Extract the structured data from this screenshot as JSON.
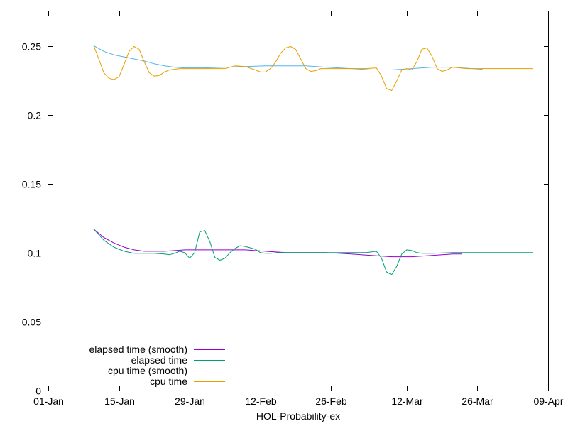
{
  "chart_data": {
    "type": "line",
    "title": "",
    "xlabel": "HOL-Probability-ex",
    "ylabel": "",
    "x_axis_type": "date",
    "xlim": [
      "01-Jan",
      "09-Apr"
    ],
    "ylim": [
      0,
      0.275
    ],
    "x_tick_labels": [
      "01-Jan",
      "15-Jan",
      "29-Jan",
      "12-Feb",
      "26-Feb",
      "12-Mar",
      "26-Mar",
      "09-Apr"
    ],
    "x_tick_dates": [
      "01-01",
      "01-15",
      "01-29",
      "02-12",
      "02-26",
      "03-12",
      "03-26",
      "04-09"
    ],
    "y_ticks": [
      0,
      0.05,
      0.1,
      0.15,
      0.2,
      0.25
    ],
    "y_tick_labels": [
      "0",
      "0.05",
      "0.1",
      "0.15",
      "0.2",
      "0.25"
    ],
    "grid": false,
    "legend_position": "bottom-left",
    "series": [
      {
        "name": "elapsed time (smooth)",
        "color": "#9400d3",
        "points": [
          [
            "01-10",
            0.117
          ],
          [
            "01-12",
            0.111
          ],
          [
            "01-14",
            0.107
          ],
          [
            "01-16",
            0.104
          ],
          [
            "01-18",
            0.102
          ],
          [
            "01-20",
            0.101
          ],
          [
            "01-24",
            0.101
          ],
          [
            "01-28",
            0.102
          ],
          [
            "02-01",
            0.102
          ],
          [
            "02-05",
            0.102
          ],
          [
            "02-09",
            0.102
          ],
          [
            "02-13",
            0.101
          ],
          [
            "02-17",
            0.1
          ],
          [
            "02-21",
            0.1
          ],
          [
            "02-25",
            0.1
          ],
          [
            "03-01",
            0.099
          ],
          [
            "03-05",
            0.098
          ],
          [
            "03-09",
            0.097
          ],
          [
            "03-13",
            0.097
          ],
          [
            "03-17",
            0.098
          ],
          [
            "03-21",
            0.099
          ],
          [
            "03-23",
            0.099
          ]
        ]
      },
      {
        "name": "elapsed time",
        "color": "#009e73",
        "points": [
          [
            "01-10",
            0.117
          ],
          [
            "01-12",
            0.109
          ],
          [
            "01-14",
            0.104
          ],
          [
            "01-16",
            0.101
          ],
          [
            "01-18",
            0.0995
          ],
          [
            "01-20",
            0.0995
          ],
          [
            "01-22",
            0.0995
          ],
          [
            "01-24",
            0.099
          ],
          [
            "01-25",
            0.0985
          ],
          [
            "01-26",
            0.0995
          ],
          [
            "01-27",
            0.101
          ],
          [
            "01-28",
            0.1
          ],
          [
            "01-29",
            0.096
          ],
          [
            "01-30",
            0.1
          ],
          [
            "01-31",
            0.115
          ],
          [
            "02-01",
            0.116
          ],
          [
            "02-02",
            0.108
          ],
          [
            "02-03",
            0.0965
          ],
          [
            "02-04",
            0.0945
          ],
          [
            "02-05",
            0.096
          ],
          [
            "02-06",
            0.1
          ],
          [
            "02-07",
            0.103
          ],
          [
            "02-08",
            0.105
          ],
          [
            "02-09",
            0.1045
          ],
          [
            "02-10",
            0.1035
          ],
          [
            "02-11",
            0.1025
          ],
          [
            "02-12",
            0.1
          ],
          [
            "02-13",
            0.0995
          ],
          [
            "02-14",
            0.0995
          ],
          [
            "02-16",
            0.1
          ],
          [
            "02-20",
            0.1
          ],
          [
            "02-24",
            0.1
          ],
          [
            "02-28",
            0.1
          ],
          [
            "03-04",
            0.1
          ],
          [
            "03-06",
            0.101
          ],
          [
            "03-07",
            0.096
          ],
          [
            "03-08",
            0.086
          ],
          [
            "03-09",
            0.084
          ],
          [
            "03-10",
            0.09
          ],
          [
            "03-11",
            0.099
          ],
          [
            "03-12",
            0.102
          ],
          [
            "03-13",
            0.1015
          ],
          [
            "03-14",
            0.1
          ],
          [
            "03-15",
            0.0995
          ],
          [
            "03-17",
            0.0995
          ],
          [
            "03-21",
            0.1
          ],
          [
            "03-25",
            0.1
          ],
          [
            "03-29",
            0.1
          ],
          [
            "04-02",
            0.1
          ],
          [
            "04-06",
            0.1
          ]
        ]
      },
      {
        "name": "cpu time (smooth)",
        "color": "#56b4e9",
        "points": [
          [
            "01-10",
            0.25
          ],
          [
            "01-12",
            0.246
          ],
          [
            "01-14",
            0.2435
          ],
          [
            "01-16",
            0.242
          ],
          [
            "01-18",
            0.2405
          ],
          [
            "01-20",
            0.239
          ],
          [
            "01-22",
            0.237
          ],
          [
            "01-24",
            0.2355
          ],
          [
            "01-26",
            0.2345
          ],
          [
            "01-28",
            0.234
          ],
          [
            "02-01",
            0.234
          ],
          [
            "02-05",
            0.2345
          ],
          [
            "02-09",
            0.235
          ],
          [
            "02-13",
            0.2355
          ],
          [
            "02-17",
            0.2355
          ],
          [
            "02-21",
            0.2355
          ],
          [
            "02-25",
            0.2345
          ],
          [
            "03-01",
            0.2335
          ],
          [
            "03-05",
            0.2325
          ],
          [
            "03-09",
            0.2325
          ],
          [
            "03-13",
            0.2335
          ],
          [
            "03-17",
            0.2345
          ],
          [
            "03-21",
            0.2345
          ],
          [
            "03-25",
            0.2335
          ],
          [
            "03-27",
            0.233
          ]
        ]
      },
      {
        "name": "cpu time",
        "color": "#e69f00",
        "points": [
          [
            "01-10",
            0.25
          ],
          [
            "01-11",
            0.2405
          ],
          [
            "01-12",
            0.2305
          ],
          [
            "01-13",
            0.2265
          ],
          [
            "01-14",
            0.2255
          ],
          [
            "01-15",
            0.2275
          ],
          [
            "01-16",
            0.2365
          ],
          [
            "01-17",
            0.246
          ],
          [
            "01-18",
            0.2495
          ],
          [
            "01-19",
            0.2475
          ],
          [
            "01-20",
            0.2385
          ],
          [
            "01-21",
            0.2305
          ],
          [
            "01-22",
            0.228
          ],
          [
            "01-23",
            0.2285
          ],
          [
            "01-24",
            0.231
          ],
          [
            "01-25",
            0.2325
          ],
          [
            "01-27",
            0.2335
          ],
          [
            "02-01",
            0.2335
          ],
          [
            "02-05",
            0.2335
          ],
          [
            "02-07",
            0.2355
          ],
          [
            "02-09",
            0.235
          ],
          [
            "02-11",
            0.2325
          ],
          [
            "02-12",
            0.231
          ],
          [
            "02-13",
            0.231
          ],
          [
            "02-14",
            0.2335
          ],
          [
            "02-15",
            0.238
          ],
          [
            "02-16",
            0.2445
          ],
          [
            "02-17",
            0.2485
          ],
          [
            "02-18",
            0.2495
          ],
          [
            "02-19",
            0.2475
          ],
          [
            "02-20",
            0.2405
          ],
          [
            "02-21",
            0.2335
          ],
          [
            "02-22",
            0.2315
          ],
          [
            "02-23",
            0.232
          ],
          [
            "02-24",
            0.2335
          ],
          [
            "02-28",
            0.2335
          ],
          [
            "03-04",
            0.2335
          ],
          [
            "03-06",
            0.234
          ],
          [
            "03-07",
            0.228
          ],
          [
            "03-08",
            0.219
          ],
          [
            "03-09",
            0.2175
          ],
          [
            "03-10",
            0.2245
          ],
          [
            "03-11",
            0.2325
          ],
          [
            "03-12",
            0.2335
          ],
          [
            "03-13",
            0.2325
          ],
          [
            "03-14",
            0.2385
          ],
          [
            "03-15",
            0.2475
          ],
          [
            "03-16",
            0.2485
          ],
          [
            "03-17",
            0.2425
          ],
          [
            "03-18",
            0.2335
          ],
          [
            "03-19",
            0.2315
          ],
          [
            "03-20",
            0.2325
          ],
          [
            "03-21",
            0.2345
          ],
          [
            "03-24",
            0.2335
          ],
          [
            "03-28",
            0.2335
          ],
          [
            "04-01",
            0.2335
          ],
          [
            "04-06",
            0.2335
          ]
        ]
      }
    ]
  }
}
